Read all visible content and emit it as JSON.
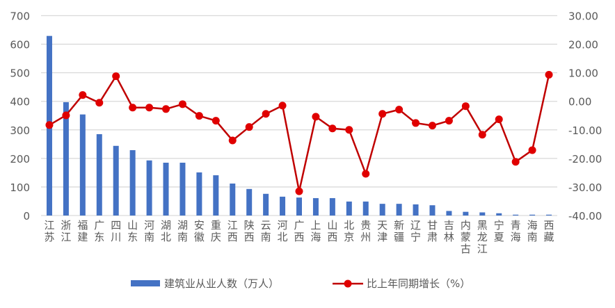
{
  "chart_data": {
    "type": "bar+line",
    "categories": [
      "江苏",
      "浙江",
      "福建",
      "广东",
      "四川",
      "山东",
      "河南",
      "湖北",
      "湖南",
      "安徽",
      "重庆",
      "江西",
      "陕西",
      "云南",
      "河北",
      "广西",
      "上海",
      "山西",
      "北京",
      "贵州",
      "天津",
      "新疆",
      "辽宁",
      "甘肃",
      "吉林",
      "内蒙古",
      "黑龙江",
      "宁夏",
      "青海",
      "海南",
      "西藏"
    ],
    "series": [
      {
        "name": "建筑业从业人数（万人）",
        "type": "bar",
        "axis": "left",
        "color": "#4472C4",
        "values": [
          629,
          397,
          354,
          285,
          244,
          229,
          193,
          185,
          185,
          151,
          141,
          112,
          93,
          76,
          66,
          63,
          61,
          61,
          49,
          49,
          41,
          41,
          39,
          36,
          16,
          13,
          11,
          8,
          3,
          3,
          3
        ]
      },
      {
        "name": "比上年同期增长（%）",
        "type": "line",
        "axis": "right",
        "color": "#C00000",
        "values": [
          -8.3,
          -4.9,
          2.2,
          -0.5,
          8.8,
          -2.2,
          -2.2,
          -2.7,
          -1.0,
          -5.1,
          -6.8,
          -13.7,
          -9.0,
          -4.4,
          -1.5,
          -31.5,
          -5.4,
          -9.5,
          -10.0,
          -25.4,
          -4.4,
          -2.9,
          -7.6,
          -8.5,
          -6.8,
          -1.7,
          -11.7,
          -6.3,
          -21.2,
          -17.1,
          9.3
        ]
      }
    ],
    "left_axis": {
      "range": [
        0,
        700
      ],
      "ticks": [
        "0",
        "100",
        "200",
        "300",
        "400",
        "500",
        "600",
        "700"
      ]
    },
    "right_axis": {
      "range": [
        -40,
        30
      ],
      "ticks": [
        "-40.00",
        "-30.00",
        "-20.00",
        "-10.00",
        "0.00",
        "10.00",
        "20.00",
        "30.00"
      ]
    },
    "grid": true,
    "legend": "bottom"
  }
}
